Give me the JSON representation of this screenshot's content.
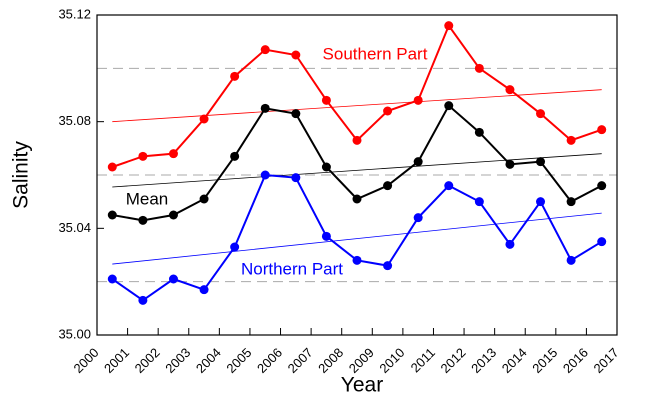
{
  "chart_data": {
    "type": "line",
    "x_label": "Year",
    "y_label": "Salinity",
    "x": [
      2000.5,
      2001.5,
      2002.5,
      2003.5,
      2004.5,
      2005.5,
      2006.5,
      2007.5,
      2008.5,
      2009.5,
      2010.5,
      2011.5,
      2012.5,
      2013.5,
      2014.5,
      2015.5,
      2016.5
    ],
    "series": [
      {
        "name": "Southern Part",
        "color": "#ff0000",
        "values": [
          35.063,
          35.067,
          35.068,
          35.081,
          35.097,
          35.107,
          35.105,
          35.088,
          35.073,
          35.084,
          35.088,
          35.116,
          35.1,
          35.092,
          35.083,
          35.073,
          35.077
        ],
        "trend": [
          35.08,
          35.092
        ]
      },
      {
        "name": "Mean",
        "color": "#000000",
        "values": [
          35.045,
          35.043,
          35.045,
          35.051,
          35.067,
          35.085,
          35.083,
          35.063,
          35.051,
          35.056,
          35.065,
          35.086,
          35.076,
          35.064,
          35.065,
          35.05,
          35.056
        ],
        "trend": [
          35.0555,
          35.068
        ]
      },
      {
        "name": "Northern Part",
        "color": "#0000ff",
        "values": [
          35.021,
          35.013,
          35.021,
          35.017,
          35.033,
          35.06,
          35.059,
          35.037,
          35.028,
          35.026,
          35.044,
          35.056,
          35.05,
          35.034,
          35.05,
          35.028,
          35.035
        ],
        "trend": [
          35.0266,
          35.0457
        ]
      }
    ],
    "xlim": [
      2000,
      2017
    ],
    "xticks": [
      2000,
      2001,
      2002,
      2003,
      2004,
      2005,
      2006,
      2007,
      2008,
      2009,
      2010,
      2011,
      2012,
      2013,
      2014,
      2015,
      2016,
      2017
    ],
    "ylim": [
      35.0,
      35.12
    ],
    "yticks": [
      {
        "value": 35.0,
        "label": "35.00"
      },
      35.04,
      35.08,
      35.12
    ],
    "grid_lines": [
      35.02,
      35.06,
      35.1
    ]
  }
}
